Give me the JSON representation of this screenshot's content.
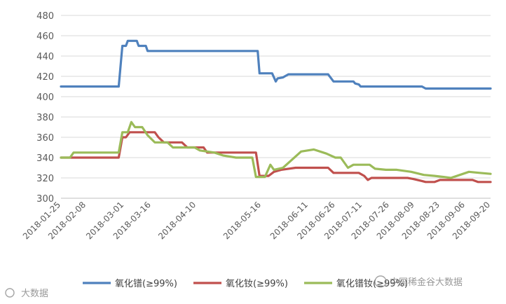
{
  "chart_data": {
    "type": "line",
    "title": "",
    "xlabel": "",
    "ylabel": "",
    "ylim": [
      300,
      480
    ],
    "yticks": [
      "300",
      "320",
      "340",
      "360",
      "380",
      "400",
      "420",
      "440",
      "460",
      "480"
    ],
    "xticks": [
      "2018-01-25",
      "2018-02-08",
      "2018-03-01",
      "2018-03-16",
      "2018-04-10",
      "2018-05-16",
      "2018-06-11",
      "2018-06-26",
      "2018-07-11",
      "2018-07-26",
      "2018-08-09",
      "2018-08-23",
      "2018-09-06",
      "2018-09-20"
    ],
    "grid": "horizontal",
    "legend_position": "bottom",
    "series": [
      {
        "name": "氧化镨(≥99%)",
        "color": "#4f81bd",
        "points": [
          [
            "2018-01-25",
            410
          ],
          [
            "2018-02-26",
            410
          ],
          [
            "2018-02-28",
            450
          ],
          [
            "2018-03-02",
            450
          ],
          [
            "2018-03-03",
            455
          ],
          [
            "2018-03-08",
            455
          ],
          [
            "2018-03-09",
            450
          ],
          [
            "2018-03-13",
            450
          ],
          [
            "2018-03-14",
            445
          ],
          [
            "2018-05-14",
            445
          ],
          [
            "2018-05-15",
            423
          ],
          [
            "2018-05-22",
            423
          ],
          [
            "2018-05-24",
            415
          ],
          [
            "2018-05-25",
            418
          ],
          [
            "2018-05-28",
            419
          ],
          [
            "2018-05-29",
            420
          ],
          [
            "2018-05-31",
            422
          ],
          [
            "2018-06-22",
            422
          ],
          [
            "2018-06-25",
            415
          ],
          [
            "2018-07-06",
            415
          ],
          [
            "2018-07-07",
            413
          ],
          [
            "2018-07-09",
            412
          ],
          [
            "2018-07-10",
            410
          ],
          [
            "2018-08-13",
            410
          ],
          [
            "2018-08-15",
            408
          ],
          [
            "2018-09-20",
            408
          ]
        ]
      },
      {
        "name": "氧化钕(≥99%)",
        "color": "#c0504d",
        "points": [
          [
            "2018-01-25",
            340
          ],
          [
            "2018-02-26",
            340
          ],
          [
            "2018-02-28",
            360
          ],
          [
            "2018-03-02",
            360
          ],
          [
            "2018-03-04",
            365
          ],
          [
            "2018-03-18",
            365
          ],
          [
            "2018-03-20",
            360
          ],
          [
            "2018-03-23",
            355
          ],
          [
            "2018-04-02",
            355
          ],
          [
            "2018-04-05",
            350
          ],
          [
            "2018-04-14",
            350
          ],
          [
            "2018-04-16",
            345
          ],
          [
            "2018-05-13",
            345
          ],
          [
            "2018-05-15",
            322
          ],
          [
            "2018-05-20",
            322
          ],
          [
            "2018-05-23",
            326
          ],
          [
            "2018-05-27",
            328
          ],
          [
            "2018-06-04",
            330
          ],
          [
            "2018-06-22",
            330
          ],
          [
            "2018-06-25",
            325
          ],
          [
            "2018-07-09",
            325
          ],
          [
            "2018-07-12",
            322
          ],
          [
            "2018-07-14",
            318
          ],
          [
            "2018-07-16",
            320
          ],
          [
            "2018-08-05",
            320
          ],
          [
            "2018-08-08",
            319
          ],
          [
            "2018-08-13",
            317
          ],
          [
            "2018-08-15",
            316
          ],
          [
            "2018-08-20",
            316
          ],
          [
            "2018-08-23",
            318
          ],
          [
            "2018-09-10",
            318
          ],
          [
            "2018-09-13",
            316
          ],
          [
            "2018-09-20",
            316
          ]
        ]
      },
      {
        "name": "氧化镨钕(≥99%)",
        "color": "#9bbb59",
        "points": [
          [
            "2018-01-25",
            340
          ],
          [
            "2018-01-30",
            340
          ],
          [
            "2018-02-01",
            345
          ],
          [
            "2018-02-26",
            345
          ],
          [
            "2018-02-28",
            365
          ],
          [
            "2018-03-03",
            365
          ],
          [
            "2018-03-05",
            375
          ],
          [
            "2018-03-07",
            370
          ],
          [
            "2018-03-11",
            370
          ],
          [
            "2018-03-14",
            362
          ],
          [
            "2018-03-18",
            355
          ],
          [
            "2018-03-25",
            355
          ],
          [
            "2018-03-28",
            350
          ],
          [
            "2018-04-09",
            350
          ],
          [
            "2018-04-12",
            347
          ],
          [
            "2018-04-20",
            345
          ],
          [
            "2018-04-25",
            342
          ],
          [
            "2018-05-02",
            340
          ],
          [
            "2018-05-11",
            340
          ],
          [
            "2018-05-13",
            321
          ],
          [
            "2018-05-18",
            321
          ],
          [
            "2018-05-21",
            333
          ],
          [
            "2018-05-23",
            328
          ],
          [
            "2018-05-28",
            330
          ],
          [
            "2018-06-02",
            338
          ],
          [
            "2018-06-07",
            346
          ],
          [
            "2018-06-14",
            348
          ],
          [
            "2018-06-21",
            344
          ],
          [
            "2018-06-26",
            340
          ],
          [
            "2018-06-29",
            340
          ],
          [
            "2018-07-03",
            330
          ],
          [
            "2018-07-06",
            333
          ],
          [
            "2018-07-15",
            333
          ],
          [
            "2018-07-18",
            329
          ],
          [
            "2018-07-24",
            328
          ],
          [
            "2018-07-30",
            328
          ],
          [
            "2018-08-07",
            326
          ],
          [
            "2018-08-14",
            323
          ],
          [
            "2018-08-20",
            322
          ],
          [
            "2018-08-25",
            321
          ],
          [
            "2018-08-29",
            320
          ],
          [
            "2018-09-03",
            323
          ],
          [
            "2018-09-08",
            326
          ],
          [
            "2018-09-14",
            325
          ],
          [
            "2018-09-20",
            324
          ]
        ]
      }
    ]
  },
  "watermarks": {
    "left": "大数据",
    "right": "中国稀金谷大数据"
  }
}
